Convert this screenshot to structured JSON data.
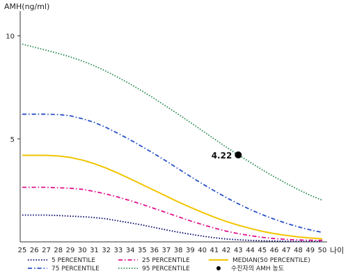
{
  "chart_data": {
    "type": "line",
    "ylabel": "AMH(ng/ml)",
    "xlabel": "나이",
    "x": [
      25,
      26,
      27,
      28,
      29,
      30,
      31,
      32,
      33,
      34,
      35,
      36,
      37,
      38,
      39,
      40,
      41,
      42,
      43,
      44,
      45,
      46,
      47,
      48,
      49,
      50
    ],
    "xlim": [
      25,
      50
    ],
    "ylim": [
      0,
      11
    ],
    "yticks": [
      5,
      10
    ],
    "grid": false,
    "legend_position": "bottom",
    "series": [
      {
        "name": "5 PERCENTILE",
        "color": "#0a0a6e",
        "dash": "dot",
        "values": [
          1.3,
          1.3,
          1.3,
          1.28,
          1.25,
          1.22,
          1.18,
          1.12,
          1.02,
          0.92,
          0.82,
          0.7,
          0.58,
          0.47,
          0.37,
          0.28,
          0.2,
          0.14,
          0.1,
          0.07,
          0.05,
          0.04,
          0.03,
          0.02,
          0.02,
          0.02
        ]
      },
      {
        "name": "25 PERCENTILE",
        "color": "#e0108c",
        "dash": "dashdot",
        "values": [
          2.65,
          2.65,
          2.65,
          2.63,
          2.6,
          2.55,
          2.45,
          2.32,
          2.17,
          2.0,
          1.82,
          1.62,
          1.42,
          1.22,
          1.02,
          0.84,
          0.67,
          0.52,
          0.4,
          0.3,
          0.22,
          0.16,
          0.12,
          0.09,
          0.08,
          0.07
        ]
      },
      {
        "name": "MEDIAN(50 PERCENTILE)",
        "color": "#f2c400",
        "dash": "solid",
        "values": [
          4.2,
          4.2,
          4.2,
          4.17,
          4.1,
          3.97,
          3.8,
          3.58,
          3.33,
          3.06,
          2.78,
          2.5,
          2.22,
          1.94,
          1.68,
          1.43,
          1.2,
          0.99,
          0.81,
          0.65,
          0.51,
          0.4,
          0.31,
          0.24,
          0.19,
          0.15
        ]
      },
      {
        "name": "75 PERCENTILE",
        "color": "#2850c8",
        "dash": "dashdot",
        "values": [
          6.2,
          6.2,
          6.2,
          6.18,
          6.12,
          5.98,
          5.8,
          5.55,
          5.26,
          4.95,
          4.62,
          4.28,
          3.92,
          3.55,
          3.18,
          2.82,
          2.48,
          2.15,
          1.85,
          1.57,
          1.32,
          1.1,
          0.9,
          0.73,
          0.58,
          0.46
        ]
      },
      {
        "name": "95 PERCENTILE",
        "color": "#2a8a50",
        "dash": "dot",
        "values": [
          9.6,
          9.45,
          9.3,
          9.15,
          8.98,
          8.78,
          8.55,
          8.28,
          7.98,
          7.66,
          7.32,
          6.96,
          6.58,
          6.2,
          5.8,
          5.4,
          5.0,
          4.6,
          4.22,
          3.86,
          3.5,
          3.16,
          2.84,
          2.54,
          2.26,
          2.02
        ]
      }
    ],
    "marker": {
      "label": "수진자의 AMH 농도",
      "x": 43,
      "y": 4.22,
      "value_label": "4.22",
      "color": "#000000"
    }
  }
}
